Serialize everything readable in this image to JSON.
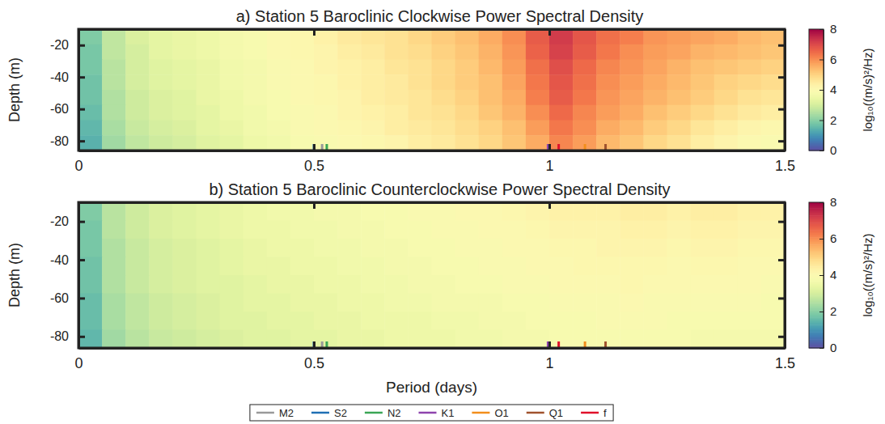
{
  "chart_data": [
    {
      "type": "heatmap",
      "title": "a) Station 5 Baroclinic Clockwise Power Spectral Density",
      "y_label": "Depth (m)",
      "xlim": [
        0,
        1.5
      ],
      "xticks": [
        0,
        0.5,
        1,
        1.5
      ],
      "ylim": [
        -86,
        -10
      ],
      "yticks": [
        -20,
        -40,
        -60,
        -80
      ],
      "x_edges": [
        0,
        0.05,
        0.1,
        0.15,
        0.2,
        0.25,
        0.3,
        0.35,
        0.4,
        0.45,
        0.5,
        0.55,
        0.6,
        0.65,
        0.7,
        0.75,
        0.8,
        0.85,
        0.9,
        0.95,
        1,
        1.05,
        1.1,
        1.15,
        1.2,
        1.25,
        1.3,
        1.35,
        1.4,
        1.45,
        1.5
      ],
      "y_edges": [
        -10,
        -19.5,
        -29,
        -38.5,
        -48,
        -57.5,
        -67,
        -76.5,
        -86
      ],
      "z": [
        [
          1.9,
          2.7,
          3.1,
          3.3,
          3.4,
          3.5,
          3.7,
          3.8,
          4.0,
          4.1,
          4.3,
          4.5,
          4.6,
          4.7,
          4.9,
          5.1,
          5.3,
          5.6,
          6.0,
          6.7,
          7.2,
          6.8,
          6.4,
          6.2,
          5.9,
          5.8,
          5.7,
          5.6,
          5.4,
          5.3
        ],
        [
          1.8,
          2.7,
          3.0,
          3.3,
          3.4,
          3.5,
          3.7,
          3.8,
          4.0,
          4.1,
          4.2,
          4.4,
          4.5,
          4.7,
          4.8,
          5.0,
          5.2,
          5.5,
          5.9,
          6.6,
          7.1,
          6.7,
          6.3,
          6.0,
          5.8,
          5.7,
          5.5,
          5.4,
          5.3,
          5.2
        ],
        [
          1.8,
          2.6,
          3.0,
          3.2,
          3.3,
          3.4,
          3.6,
          3.7,
          3.9,
          4.0,
          4.2,
          4.3,
          4.4,
          4.6,
          4.7,
          4.9,
          5.1,
          5.4,
          5.8,
          6.4,
          6.9,
          6.5,
          6.1,
          5.9,
          5.7,
          5.5,
          5.3,
          5.2,
          5.1,
          5.0
        ],
        [
          1.7,
          2.6,
          3.0,
          3.2,
          3.3,
          3.4,
          3.6,
          3.7,
          3.9,
          4.0,
          4.1,
          4.3,
          4.4,
          4.5,
          4.7,
          4.9,
          5.1,
          5.3,
          5.7,
          6.3,
          6.8,
          6.4,
          6.0,
          5.8,
          5.6,
          5.4,
          5.2,
          5.0,
          4.9,
          4.8
        ],
        [
          1.7,
          2.5,
          2.9,
          3.1,
          3.2,
          3.4,
          3.5,
          3.7,
          3.8,
          4.0,
          4.1,
          4.2,
          4.4,
          4.5,
          4.6,
          4.8,
          5.0,
          5.3,
          5.6,
          6.2,
          6.7,
          6.3,
          5.9,
          5.7,
          5.5,
          5.3,
          5.1,
          4.9,
          4.7,
          4.6
        ],
        [
          1.6,
          2.5,
          2.9,
          3.1,
          3.2,
          3.3,
          3.5,
          3.6,
          3.8,
          3.9,
          4.0,
          4.2,
          4.3,
          4.4,
          4.6,
          4.7,
          4.9,
          5.2,
          5.5,
          6.0,
          6.5,
          6.1,
          5.8,
          5.6,
          5.3,
          5.1,
          4.9,
          4.7,
          4.5,
          4.4
        ],
        [
          1.5,
          2.4,
          2.8,
          3.0,
          3.1,
          3.3,
          3.4,
          3.6,
          3.7,
          3.9,
          4.0,
          4.1,
          4.2,
          4.4,
          4.5,
          4.6,
          4.8,
          5.0,
          5.3,
          5.8,
          6.3,
          6.0,
          5.6,
          5.4,
          5.1,
          4.9,
          4.6,
          4.4,
          4.2,
          4.1
        ],
        [
          1.4,
          2.3,
          2.7,
          2.9,
          3.0,
          3.2,
          3.3,
          3.5,
          3.6,
          3.8,
          3.9,
          4.0,
          4.1,
          4.2,
          4.4,
          4.5,
          4.7,
          4.9,
          5.2,
          5.6,
          6.1,
          5.8,
          5.4,
          5.2,
          4.9,
          4.7,
          4.4,
          4.2,
          4.0,
          3.9
        ]
      ],
      "colorbar": {
        "range": [
          0,
          8
        ],
        "ticks": [
          0,
          2,
          4,
          6,
          8
        ],
        "label": "log₁₀((m/s)²/Hz)"
      },
      "tidal_lines": [
        {
          "name": "M2",
          "color": "#999999",
          "period": 0.5175
        },
        {
          "name": "S2",
          "color": "#1f6fb4",
          "period": 0.5
        },
        {
          "name": "N2",
          "color": "#3aa655",
          "period": 0.5274
        },
        {
          "name": "K1",
          "color": "#8e44ad",
          "period": 0.9973
        },
        {
          "name": "O1",
          "color": "#f28e1c",
          "period": 1.0758
        },
        {
          "name": "Q1",
          "color": "#a0522d",
          "period": 1.1195
        },
        {
          "name": "f",
          "color": "#e0102a",
          "period": 1.02
        }
      ]
    },
    {
      "type": "heatmap",
      "title": "b) Station 5 Baroclinic Counterclockwise Power Spectral Density",
      "x_label": "Period (days)",
      "y_label": "Depth (m)",
      "xlim": [
        0,
        1.5
      ],
      "xticks": [
        0,
        0.5,
        1,
        1.5
      ],
      "ylim": [
        -86,
        -10
      ],
      "yticks": [
        -20,
        -40,
        -60,
        -80
      ],
      "x_edges": [
        0,
        0.05,
        0.1,
        0.15,
        0.2,
        0.25,
        0.3,
        0.35,
        0.4,
        0.45,
        0.5,
        0.55,
        0.6,
        0.65,
        0.7,
        0.75,
        0.8,
        0.85,
        0.9,
        0.95,
        1,
        1.05,
        1.1,
        1.15,
        1.2,
        1.25,
        1.3,
        1.35,
        1.4,
        1.45,
        1.5
      ],
      "y_edges": [
        -10,
        -19.5,
        -29,
        -38.5,
        -48,
        -57.5,
        -67,
        -76.5,
        -86
      ],
      "z": [
        [
          1.9,
          2.6,
          2.9,
          3.1,
          3.2,
          3.3,
          3.4,
          3.5,
          3.6,
          3.6,
          3.7,
          3.7,
          3.8,
          3.8,
          3.9,
          3.9,
          4.0,
          4.0,
          4.1,
          4.2,
          4.3,
          4.3,
          4.3,
          4.4,
          4.4,
          4.3,
          4.4,
          4.4,
          4.3,
          4.3
        ],
        [
          1.8,
          2.6,
          2.9,
          3.1,
          3.2,
          3.3,
          3.4,
          3.5,
          3.5,
          3.6,
          3.6,
          3.7,
          3.7,
          3.8,
          3.8,
          3.9,
          3.9,
          4.0,
          4.0,
          4.1,
          4.2,
          4.2,
          4.2,
          4.3,
          4.3,
          4.2,
          4.3,
          4.3,
          4.2,
          4.2
        ],
        [
          1.8,
          2.5,
          2.8,
          3.0,
          3.1,
          3.2,
          3.3,
          3.4,
          3.5,
          3.5,
          3.6,
          3.6,
          3.7,
          3.7,
          3.8,
          3.8,
          3.9,
          3.9,
          4.0,
          4.0,
          4.1,
          4.1,
          4.2,
          4.2,
          4.2,
          4.1,
          4.2,
          4.2,
          4.1,
          4.1
        ],
        [
          1.7,
          2.5,
          2.8,
          3.0,
          3.1,
          3.2,
          3.3,
          3.4,
          3.4,
          3.5,
          3.5,
          3.6,
          3.6,
          3.7,
          3.7,
          3.8,
          3.8,
          3.9,
          3.9,
          4.0,
          4.0,
          4.1,
          4.1,
          4.1,
          4.1,
          4.0,
          4.1,
          4.1,
          4.0,
          4.0
        ],
        [
          1.7,
          2.5,
          2.8,
          3.0,
          3.1,
          3.2,
          3.2,
          3.3,
          3.4,
          3.4,
          3.5,
          3.5,
          3.6,
          3.6,
          3.7,
          3.7,
          3.8,
          3.8,
          3.9,
          3.9,
          4.0,
          4.0,
          4.0,
          4.1,
          4.0,
          4.0,
          4.0,
          4.0,
          4.0,
          3.9
        ],
        [
          1.6,
          2.4,
          2.7,
          2.9,
          3.0,
          3.1,
          3.2,
          3.3,
          3.3,
          3.4,
          3.4,
          3.5,
          3.5,
          3.6,
          3.6,
          3.7,
          3.7,
          3.7,
          3.8,
          3.8,
          3.9,
          3.9,
          3.9,
          4.0,
          3.9,
          3.9,
          3.9,
          3.9,
          3.9,
          3.8
        ],
        [
          1.6,
          2.4,
          2.7,
          2.9,
          3.0,
          3.1,
          3.2,
          3.2,
          3.3,
          3.3,
          3.4,
          3.4,
          3.5,
          3.5,
          3.5,
          3.6,
          3.6,
          3.7,
          3.7,
          3.8,
          3.8,
          3.8,
          3.9,
          3.9,
          3.9,
          3.8,
          3.8,
          3.8,
          3.8,
          3.8
        ],
        [
          1.5,
          2.3,
          2.6,
          2.8,
          2.9,
          3.0,
          3.1,
          3.2,
          3.2,
          3.3,
          3.3,
          3.4,
          3.4,
          3.5,
          3.5,
          3.5,
          3.6,
          3.6,
          3.7,
          3.7,
          3.8,
          3.8,
          3.8,
          3.8,
          3.8,
          3.8,
          3.7,
          3.7,
          3.7,
          3.7
        ]
      ],
      "colorbar": {
        "range": [
          0,
          8
        ],
        "ticks": [
          0,
          2,
          4,
          6,
          8
        ],
        "label": "log₁₀((m/s)²/Hz)"
      },
      "tidal_lines": [
        {
          "name": "M2",
          "color": "#999999",
          "period": 0.5175
        },
        {
          "name": "S2",
          "color": "#1f6fb4",
          "period": 0.5
        },
        {
          "name": "N2",
          "color": "#3aa655",
          "period": 0.5274
        },
        {
          "name": "K1",
          "color": "#8e44ad",
          "period": 0.9973
        },
        {
          "name": "O1",
          "color": "#f28e1c",
          "period": 1.0758
        },
        {
          "name": "Q1",
          "color": "#a0522d",
          "period": 1.1195
        },
        {
          "name": "f",
          "color": "#e0102a",
          "period": 1.02
        }
      ],
      "legend": "bottom"
    }
  ]
}
